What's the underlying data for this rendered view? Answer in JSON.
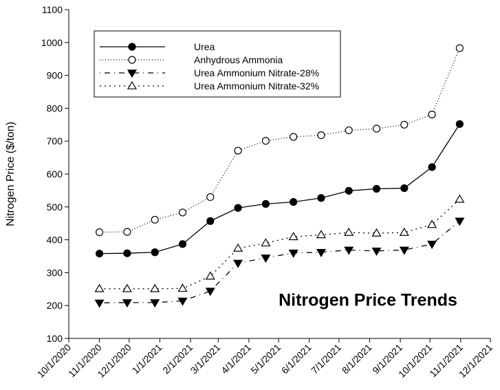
{
  "chart_data": {
    "type": "line",
    "ylabel": "Nitrogen Price ($/ton)",
    "annotation": "Nitrogen Price Trends",
    "x": [
      "2020-11-01",
      "2020-11-29",
      "2020-12-27",
      "2021-01-24",
      "2021-02-21",
      "2021-03-21",
      "2021-04-18",
      "2021-05-16",
      "2021-06-13",
      "2021-07-11",
      "2021-08-08",
      "2021-09-05",
      "2021-10-03",
      "2021-10-31"
    ],
    "series": [
      {
        "name": "Urea",
        "color": "#000000",
        "marker": "circle",
        "filled": true,
        "dash": "none",
        "values": [
          358,
          359,
          362,
          387,
          457,
          497,
          509,
          515,
          527,
          549,
          555,
          557,
          621,
          752
        ]
      },
      {
        "name": "Anhydrous Ammonia",
        "color": "#000000",
        "marker": "circle",
        "filled": false,
        "dash": "1 3",
        "values": [
          423,
          424,
          461,
          483,
          530,
          671,
          701,
          713,
          718,
          733,
          738,
          750,
          781,
          983
        ]
      },
      {
        "name": "Urea Ammonium Nitrate-28%",
        "color": "#000000",
        "marker": "triangle-down",
        "filled": true,
        "dash": "1 6 8 6",
        "values": [
          208,
          209,
          209,
          214,
          244,
          329,
          345,
          360,
          362,
          369,
          366,
          369,
          387,
          457
        ]
      },
      {
        "name": "Urea Ammonium Nitrate-32%",
        "color": "#000000",
        "marker": "triangle-up",
        "filled": false,
        "dash": "2 5",
        "values": [
          251,
          251,
          251,
          252,
          289,
          374,
          390,
          409,
          415,
          422,
          420,
          422,
          446,
          523
        ]
      }
    ],
    "xlim": [
      "2020-10-01",
      "2021-12-01"
    ],
    "xticks": [
      {
        "value": "2020-10-01",
        "label": "10/1/2020"
      },
      {
        "value": "2020-11-01",
        "label": "11/1/2020"
      },
      {
        "value": "2020-12-01",
        "label": "12/1/2020"
      },
      {
        "value": "2021-01-01",
        "label": "1/1/2021"
      },
      {
        "value": "2021-02-01",
        "label": "2/1/2021"
      },
      {
        "value": "2021-03-01",
        "label": "3/1/2021"
      },
      {
        "value": "2021-04-01",
        "label": "4/1/2021"
      },
      {
        "value": "2021-05-01",
        "label": "5/1/2021"
      },
      {
        "value": "2021-06-01",
        "label": "6/1/2021"
      },
      {
        "value": "2021-07-01",
        "label": "7/1/2021"
      },
      {
        "value": "2021-08-01",
        "label": "8/1/2021"
      },
      {
        "value": "2021-09-01",
        "label": "9/1/2021"
      },
      {
        "value": "2021-10-01",
        "label": "10/1/2021"
      },
      {
        "value": "2021-11-01",
        "label": "11/1/2021"
      },
      {
        "value": "2021-12-01",
        "label": "12/1/2021"
      }
    ],
    "ylim": [
      100,
      1100
    ],
    "yticks": [
      100,
      200,
      300,
      400,
      500,
      600,
      700,
      800,
      900,
      1000,
      1100
    ],
    "grid": false,
    "legend": "upper left"
  }
}
